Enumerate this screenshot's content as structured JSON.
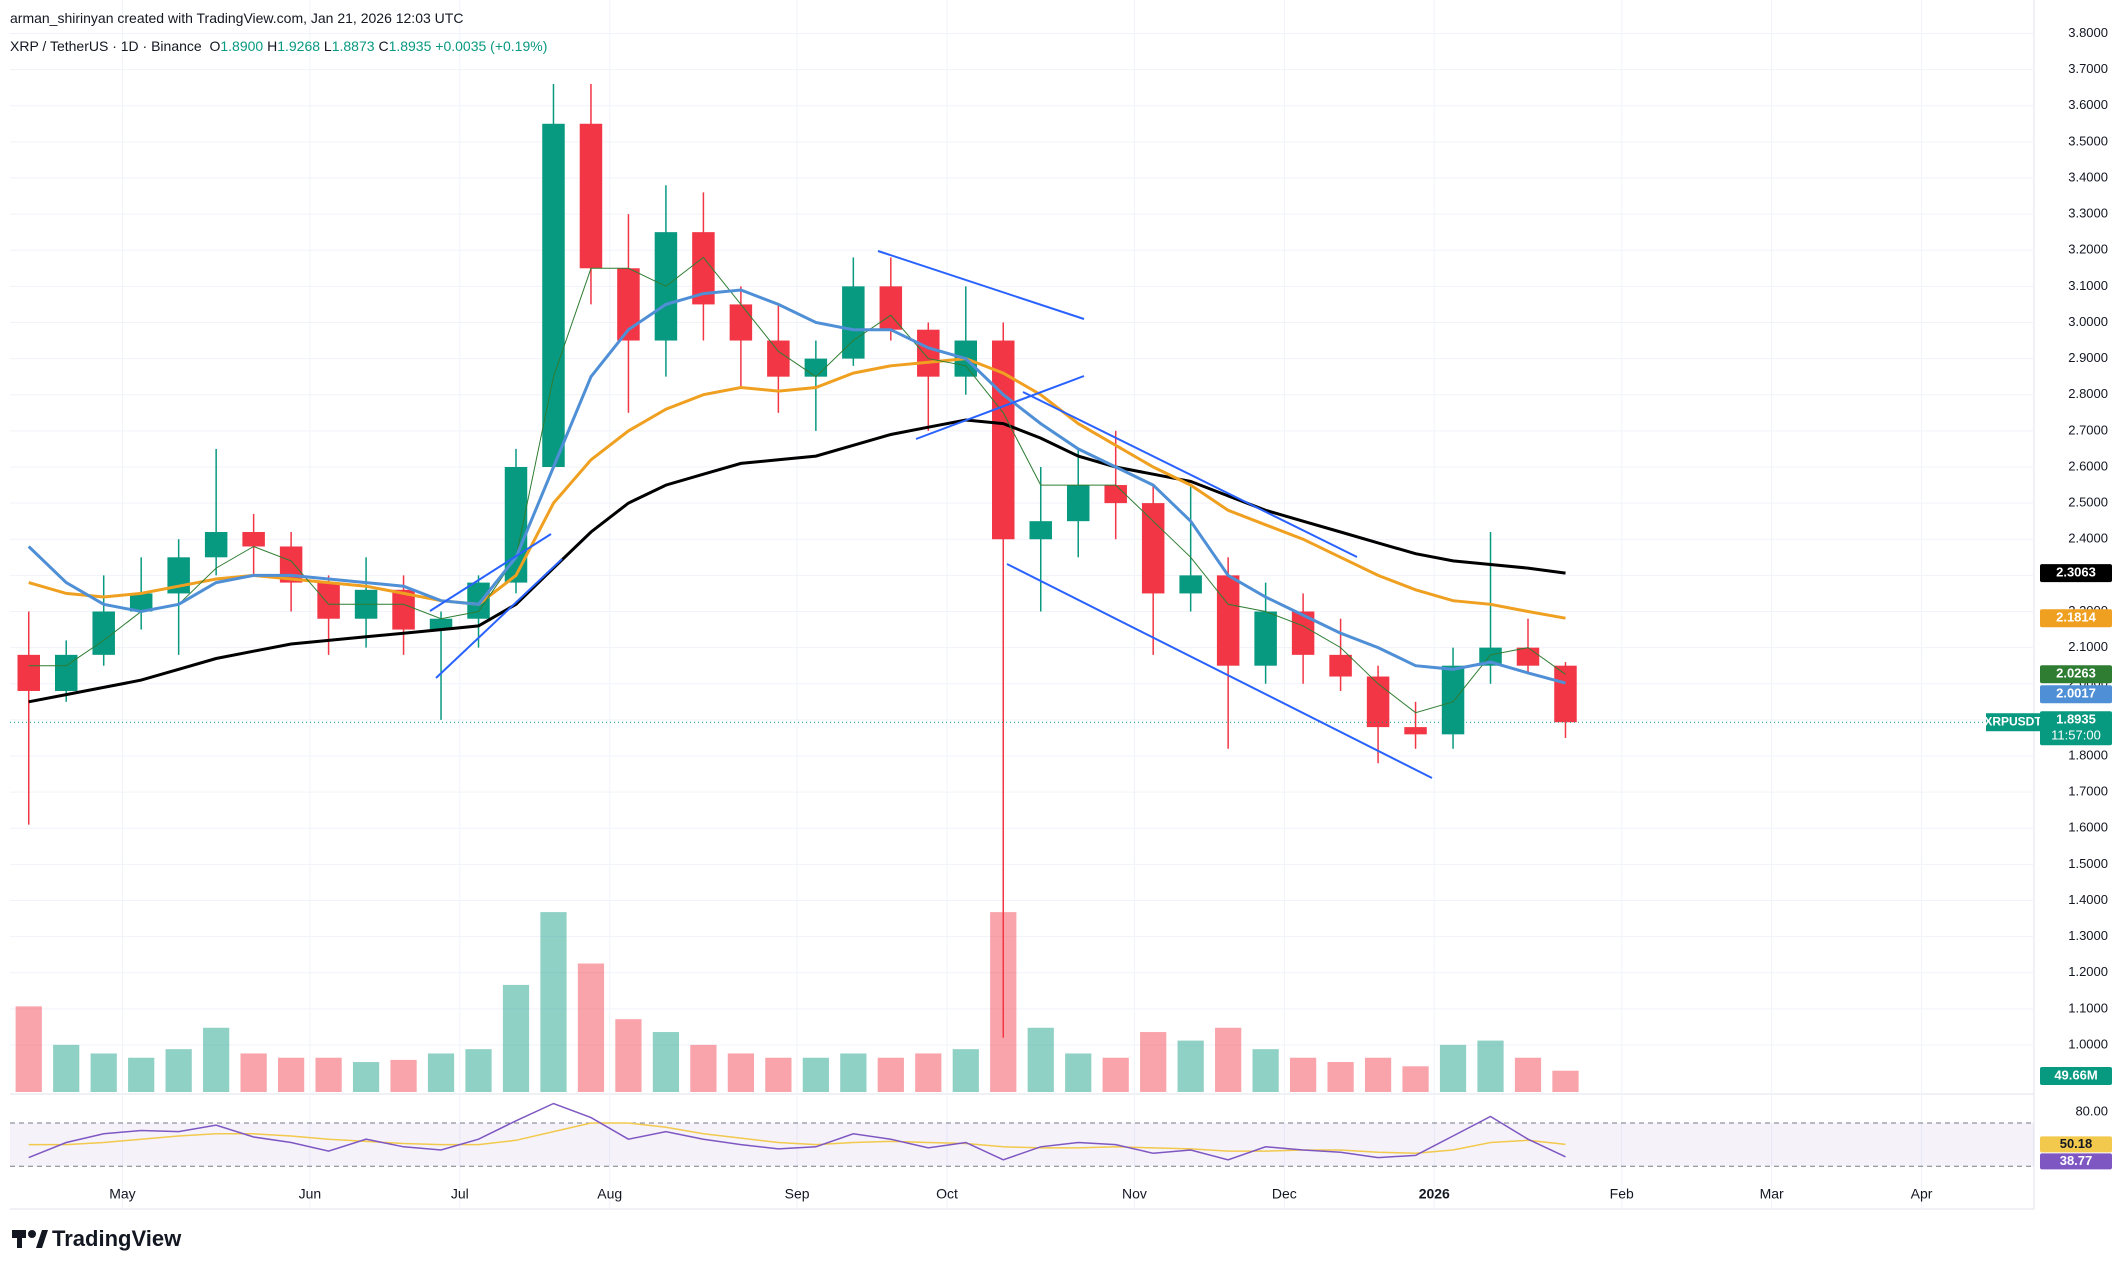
{
  "header": {
    "credit": "arman_shirinyan created with TradingView.com, Jan 21, 2026 12:03 UTC",
    "symbol": "XRP / TetherUS · 1D · Binance",
    "ohlc": [
      {
        "label": "O",
        "value": "1.8900"
      },
      {
        "label": "H",
        "value": "1.9268"
      },
      {
        "label": "L",
        "value": "1.8873"
      },
      {
        "label": "C",
        "value": "1.8935"
      }
    ],
    "change": "+0.0035 (+0.19%)"
  },
  "chart_data": {
    "type": "candlestick",
    "categories": [
      null,
      null,
      null,
      "May",
      null,
      null,
      null,
      null,
      "Jun",
      null,
      null,
      null,
      "Jul",
      null,
      null,
      null,
      "Aug",
      null,
      null,
      null,
      null,
      "Sep",
      null,
      null,
      null,
      "Oct",
      null,
      null,
      null,
      null,
      "Nov",
      null,
      null,
      null,
      "Dec",
      null,
      null,
      null,
      "2026",
      null,
      null,
      null,
      null,
      "Feb",
      null,
      null,
      null,
      "Mar",
      null,
      null,
      null,
      "Apr",
      null,
      null
    ],
    "open": [
      2.08,
      1.98,
      2.08,
      2.2,
      2.25,
      2.35,
      2.42,
      2.38,
      2.28,
      2.18,
      2.26,
      2.15,
      2.18,
      2.28,
      2.6,
      3.55,
      3.15,
      2.95,
      3.25,
      3.05,
      2.95,
      2.85,
      2.9,
      3.1,
      2.98,
      2.85,
      2.95,
      2.4,
      2.45,
      2.55,
      2.5,
      2.25,
      2.3,
      2.05,
      2.2,
      2.08,
      2.02,
      1.88,
      1.86,
      2.05,
      2.1,
      2.05,
      null,
      null,
      null,
      null,
      null,
      null,
      null,
      null,
      null,
      null,
      null,
      null
    ],
    "high": [
      2.2,
      2.12,
      2.3,
      2.35,
      2.4,
      2.65,
      2.47,
      2.42,
      2.3,
      2.35,
      2.3,
      2.2,
      2.3,
      2.65,
      3.66,
      3.66,
      3.3,
      3.38,
      3.36,
      3.1,
      3.05,
      2.95,
      3.18,
      3.18,
      3.0,
      3.1,
      3.0,
      2.6,
      2.65,
      2.7,
      2.55,
      2.55,
      2.35,
      2.28,
      2.25,
      2.18,
      2.05,
      1.95,
      2.1,
      2.42,
      2.18,
      2.06,
      null,
      null,
      null,
      null,
      null,
      null,
      null,
      null,
      null,
      null,
      null,
      null
    ],
    "low": [
      1.61,
      1.95,
      2.05,
      2.15,
      2.08,
      2.3,
      2.3,
      2.2,
      2.08,
      2.1,
      2.08,
      1.9,
      2.1,
      2.25,
      2.6,
      3.05,
      2.75,
      2.85,
      2.95,
      2.82,
      2.75,
      2.7,
      2.88,
      2.95,
      2.7,
      2.8,
      1.02,
      2.2,
      2.35,
      2.4,
      2.08,
      2.2,
      1.82,
      2.0,
      2.0,
      1.98,
      1.78,
      1.82,
      1.82,
      2.0,
      2.03,
      1.85,
      null,
      null,
      null,
      null,
      null,
      null,
      null,
      null,
      null,
      null,
      null,
      null
    ],
    "close": [
      1.98,
      2.08,
      2.2,
      2.25,
      2.35,
      2.42,
      2.38,
      2.28,
      2.18,
      2.26,
      2.15,
      2.18,
      2.28,
      2.6,
      3.55,
      3.15,
      2.95,
      3.25,
      3.05,
      2.95,
      2.85,
      2.9,
      3.1,
      2.98,
      2.85,
      2.95,
      2.4,
      2.45,
      2.55,
      2.5,
      2.25,
      2.3,
      2.05,
      2.2,
      2.08,
      2.02,
      1.88,
      1.86,
      2.05,
      2.1,
      2.05,
      1.8935,
      null,
      null,
      null,
      null,
      null,
      null,
      null,
      null,
      null,
      null,
      null,
      null
    ],
    "up_color": "#089981",
    "down_color": "#f23645",
    "grid": true,
    "ylim": [
      0.87,
      3.84
    ],
    "yticks": [
      {
        "value": 3.8,
        "label": "3.8000"
      },
      {
        "value": 3.7,
        "label": "3.7000"
      },
      {
        "value": 3.6,
        "label": "3.6000"
      },
      {
        "value": 3.5,
        "label": "3.5000"
      },
      {
        "value": 3.4,
        "label": "3.4000"
      },
      {
        "value": 3.3,
        "label": "3.3000"
      },
      {
        "value": 3.2,
        "label": "3.2000"
      },
      {
        "value": 3.1,
        "label": "3.1000"
      },
      {
        "value": 3.0,
        "label": "3.0000"
      },
      {
        "value": 2.9,
        "label": "2.9000"
      },
      {
        "value": 2.8,
        "label": "2.8000"
      },
      {
        "value": 2.7,
        "label": "2.7000"
      },
      {
        "value": 2.6,
        "label": "2.6000"
      },
      {
        "value": 2.5,
        "label": "2.5000"
      },
      {
        "value": 2.4,
        "label": "2.4000"
      },
      {
        "value": 2.3,
        "label": "2.3000"
      },
      {
        "value": 2.2,
        "label": "2.2000"
      },
      {
        "value": 2.1,
        "label": "2.1000"
      },
      {
        "value": 2.0,
        "label": "2.0000"
      },
      {
        "value": 1.9,
        "label": "1.9000"
      },
      {
        "value": 1.8,
        "label": "1.8000"
      },
      {
        "value": 1.7,
        "label": "1.7000"
      },
      {
        "value": 1.6,
        "label": "1.6000"
      },
      {
        "value": 1.5,
        "label": "1.5000"
      },
      {
        "value": 1.4,
        "label": "1.4000"
      },
      {
        "value": 1.3,
        "label": "1.3000"
      },
      {
        "value": 1.2,
        "label": "1.2000"
      },
      {
        "value": 1.1,
        "label": "1.1000"
      },
      {
        "value": 1.0,
        "label": "1.0000"
      }
    ],
    "overlays": [
      {
        "color": "#000000",
        "width": 3,
        "values": [
          1.95,
          1.97,
          1.99,
          2.01,
          2.04,
          2.07,
          2.09,
          2.11,
          2.12,
          2.13,
          2.14,
          2.15,
          2.16,
          2.22,
          2.32,
          2.42,
          2.5,
          2.55,
          2.58,
          2.61,
          2.62,
          2.63,
          2.66,
          2.69,
          2.71,
          2.73,
          2.72,
          2.68,
          2.63,
          2.6,
          2.58,
          2.56,
          2.52,
          2.48,
          2.45,
          2.42,
          2.39,
          2.36,
          2.34,
          2.33,
          2.32,
          2.3063,
          null,
          null,
          null,
          null,
          null,
          null,
          null,
          null,
          null,
          null,
          null,
          null
        ]
      },
      {
        "color": "#f0a020",
        "width": 3,
        "values": [
          2.28,
          2.25,
          2.24,
          2.25,
          2.27,
          2.29,
          2.3,
          2.29,
          2.28,
          2.27,
          2.25,
          2.23,
          2.22,
          2.3,
          2.5,
          2.62,
          2.7,
          2.76,
          2.8,
          2.82,
          2.81,
          2.82,
          2.86,
          2.88,
          2.89,
          2.9,
          2.86,
          2.8,
          2.72,
          2.66,
          2.6,
          2.55,
          2.48,
          2.44,
          2.4,
          2.35,
          2.3,
          2.26,
          2.23,
          2.22,
          2.2,
          2.1814,
          null,
          null,
          null,
          null,
          null,
          null,
          null,
          null,
          null,
          null,
          null,
          null
        ]
      },
      {
        "color": "#2e7d32",
        "width": 1,
        "values": [
          2.05,
          2.05,
          2.12,
          2.2,
          2.22,
          2.32,
          2.38,
          2.34,
          2.22,
          2.22,
          2.22,
          2.18,
          2.2,
          2.35,
          2.85,
          3.15,
          3.15,
          3.1,
          3.18,
          3.05,
          2.92,
          2.85,
          2.95,
          3.02,
          2.9,
          2.88,
          2.75,
          2.55,
          2.55,
          2.55,
          2.45,
          2.35,
          2.22,
          2.2,
          2.16,
          2.1,
          2.0,
          1.92,
          1.95,
          2.08,
          2.1,
          2.0263,
          null,
          null,
          null,
          null,
          null,
          null,
          null,
          null,
          null,
          null,
          null,
          null
        ]
      },
      {
        "color": "#4f8fd6",
        "width": 3,
        "values": [
          2.38,
          2.28,
          2.22,
          2.2,
          2.22,
          2.28,
          2.3,
          2.3,
          2.29,
          2.28,
          2.27,
          2.23,
          2.22,
          2.35,
          2.6,
          2.85,
          2.98,
          3.05,
          3.08,
          3.09,
          3.05,
          3.0,
          2.98,
          2.98,
          2.93,
          2.9,
          2.8,
          2.72,
          2.65,
          2.6,
          2.55,
          2.45,
          2.3,
          2.24,
          2.19,
          2.14,
          2.1,
          2.05,
          2.04,
          2.06,
          2.03,
          2.0017,
          null,
          null,
          null,
          null,
          null,
          null,
          null,
          null,
          null,
          null,
          null,
          null
        ]
      }
    ],
    "last_price_label": {
      "symbol": "XRPUSDT",
      "countdown": "11:57:00"
    },
    "volume": {
      "vlim": [
        0,
        600
      ],
      "values": [
        200,
        110,
        90,
        80,
        100,
        150,
        90,
        80,
        80,
        70,
        75,
        90,
        100,
        250,
        420,
        300,
        170,
        140,
        110,
        90,
        80,
        80,
        90,
        80,
        90,
        100,
        420,
        150,
        90,
        80,
        140,
        120,
        150,
        100,
        80,
        70,
        80,
        60,
        110,
        120,
        80,
        49.66,
        null,
        null,
        null,
        null,
        null,
        null,
        null,
        null,
        null,
        null,
        null,
        null
      ],
      "value_labels": [
        null,
        null,
        null,
        null,
        null,
        null,
        null,
        null,
        null,
        null,
        null,
        null,
        null,
        null,
        null,
        null,
        null,
        null,
        null,
        null,
        null,
        null,
        null,
        null,
        null,
        null,
        null,
        null,
        null,
        null,
        null,
        null,
        null,
        null,
        null,
        null,
        null,
        null,
        null,
        null,
        null,
        "49.66M",
        null,
        null,
        null,
        null,
        null,
        null,
        null,
        null,
        null,
        null,
        null,
        null
      ]
    },
    "rsi": {
      "color": "#7e57c2",
      "ma_color": "#f2c94c",
      "ylim": [
        21,
        94
      ],
      "yticks": [
        {
          "value": 80,
          "label": "80.00"
        }
      ],
      "levels": [
        70,
        30
      ],
      "values": [
        38,
        52,
        60,
        63,
        62,
        68,
        57,
        52,
        44,
        55,
        48,
        45,
        55,
        72,
        88,
        75,
        55,
        62,
        55,
        50,
        46,
        48,
        60,
        55,
        47,
        52,
        36,
        48,
        52,
        50,
        42,
        45,
        36,
        48,
        45,
        43,
        38,
        40,
        58,
        76,
        55,
        38.77,
        null,
        null,
        null,
        null,
        null,
        null,
        null,
        null,
        null,
        null,
        null,
        null
      ],
      "ma_values": [
        50,
        50,
        52,
        55,
        58,
        60,
        60,
        58,
        55,
        53,
        51,
        50,
        50,
        54,
        62,
        70,
        70,
        66,
        60,
        56,
        52,
        50,
        52,
        53,
        52,
        51,
        48,
        47,
        47,
        48,
        47,
        46,
        44,
        44,
        45,
        45,
        43,
        42,
        45,
        52,
        54,
        50.18,
        null,
        null,
        null,
        null,
        null,
        null,
        null,
        null,
        null,
        null,
        null,
        null
      ]
    }
  },
  "footer": {
    "logo": "TradingView"
  }
}
